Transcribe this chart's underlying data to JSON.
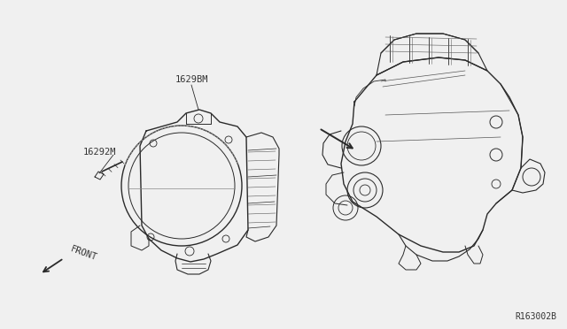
{
  "bg_color": "#f0f0f0",
  "line_color": "#2a2a2a",
  "text_color": "#333333",
  "label_16298BM": "1629BM",
  "label_16292M": "16292M",
  "label_front": "FRONT",
  "label_code": "R163002B"
}
